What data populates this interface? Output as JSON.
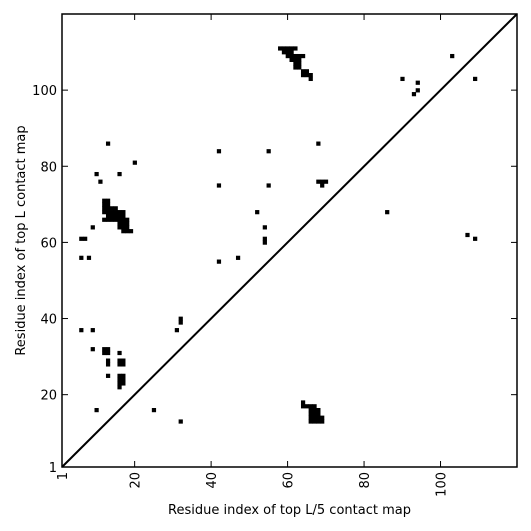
{
  "chart_data": {
    "type": "heatmap",
    "title": "",
    "xlabel": "Residue index of top L/5 contact map",
    "ylabel": "Residue index of top L contact map",
    "xlim": [
      1,
      120
    ],
    "ylim": [
      1,
      120
    ],
    "xticks": [
      1,
      20,
      40,
      60,
      80,
      100
    ],
    "yticks": [
      1,
      20,
      40,
      60,
      80,
      100
    ],
    "xtick_rotation": 90,
    "grid": false,
    "diagonal": true,
    "point_color": "#000000",
    "points": [
      [
        58,
        111
      ],
      [
        59,
        111
      ],
      [
        60,
        111
      ],
      [
        61,
        111
      ],
      [
        62,
        111
      ],
      [
        59,
        110
      ],
      [
        60,
        110
      ],
      [
        61,
        110
      ],
      [
        60,
        109
      ],
      [
        61,
        109
      ],
      [
        62,
        109
      ],
      [
        63,
        109
      ],
      [
        64,
        109
      ],
      [
        61,
        108
      ],
      [
        62,
        108
      ],
      [
        63,
        108
      ],
      [
        62,
        107
      ],
      [
        63,
        107
      ],
      [
        62,
        106
      ],
      [
        63,
        106
      ],
      [
        64,
        105
      ],
      [
        65,
        105
      ],
      [
        64,
        104
      ],
      [
        65,
        104
      ],
      [
        66,
        104
      ],
      [
        66,
        103
      ],
      [
        90,
        103
      ],
      [
        109,
        103
      ],
      [
        103,
        109
      ],
      [
        94,
        102
      ],
      [
        94,
        100
      ],
      [
        93,
        99
      ],
      [
        13,
        86
      ],
      [
        68,
        86
      ],
      [
        42,
        84
      ],
      [
        55,
        84
      ],
      [
        20,
        81
      ],
      [
        10,
        78
      ],
      [
        16,
        78
      ],
      [
        11,
        76
      ],
      [
        68,
        76
      ],
      [
        69,
        76
      ],
      [
        70,
        76
      ],
      [
        42,
        75
      ],
      [
        55,
        75
      ],
      [
        69,
        75
      ],
      [
        12,
        71
      ],
      [
        13,
        71
      ],
      [
        12,
        70
      ],
      [
        13,
        70
      ],
      [
        12,
        69
      ],
      [
        13,
        69
      ],
      [
        14,
        69
      ],
      [
        15,
        69
      ],
      [
        12,
        68
      ],
      [
        13,
        68
      ],
      [
        14,
        68
      ],
      [
        15,
        68
      ],
      [
        16,
        68
      ],
      [
        17,
        68
      ],
      [
        13,
        67
      ],
      [
        14,
        67
      ],
      [
        15,
        67
      ],
      [
        16,
        67
      ],
      [
        17,
        67
      ],
      [
        12,
        66
      ],
      [
        13,
        66
      ],
      [
        14,
        66
      ],
      [
        15,
        66
      ],
      [
        16,
        66
      ],
      [
        17,
        66
      ],
      [
        18,
        66
      ],
      [
        16,
        65
      ],
      [
        17,
        65
      ],
      [
        18,
        65
      ],
      [
        16,
        64
      ],
      [
        17,
        64
      ],
      [
        18,
        64
      ],
      [
        9,
        64
      ],
      [
        17,
        63
      ],
      [
        18,
        63
      ],
      [
        19,
        63
      ],
      [
        52,
        68
      ],
      [
        86,
        68
      ],
      [
        54,
        64
      ],
      [
        54,
        61
      ],
      [
        54,
        60
      ],
      [
        6,
        61
      ],
      [
        7,
        61
      ],
      [
        107,
        62
      ],
      [
        109,
        61
      ],
      [
        6,
        56
      ],
      [
        8,
        56
      ],
      [
        42,
        55
      ],
      [
        47,
        56
      ],
      [
        32,
        40
      ],
      [
        32,
        39
      ],
      [
        31,
        37
      ],
      [
        6,
        37
      ],
      [
        9,
        37
      ],
      [
        9,
        32
      ],
      [
        12,
        32
      ],
      [
        13,
        32
      ],
      [
        12,
        31
      ],
      [
        13,
        31
      ],
      [
        16,
        31
      ],
      [
        13,
        29
      ],
      [
        16,
        29
      ],
      [
        17,
        29
      ],
      [
        13,
        28
      ],
      [
        16,
        28
      ],
      [
        17,
        28
      ],
      [
        13,
        25
      ],
      [
        16,
        25
      ],
      [
        17,
        25
      ],
      [
        16,
        24
      ],
      [
        17,
        24
      ],
      [
        16,
        23
      ],
      [
        17,
        23
      ],
      [
        16,
        22
      ],
      [
        10,
        16
      ],
      [
        25,
        16
      ],
      [
        32,
        13
      ],
      [
        64,
        18
      ],
      [
        64,
        17
      ],
      [
        65,
        17
      ],
      [
        66,
        17
      ],
      [
        67,
        17
      ],
      [
        66,
        16
      ],
      [
        67,
        16
      ],
      [
        68,
        16
      ],
      [
        66,
        15
      ],
      [
        67,
        15
      ],
      [
        68,
        15
      ],
      [
        66,
        14
      ],
      [
        67,
        14
      ],
      [
        68,
        14
      ],
      [
        69,
        14
      ],
      [
        66,
        13
      ],
      [
        67,
        13
      ],
      [
        68,
        13
      ],
      [
        69,
        13
      ]
    ]
  }
}
